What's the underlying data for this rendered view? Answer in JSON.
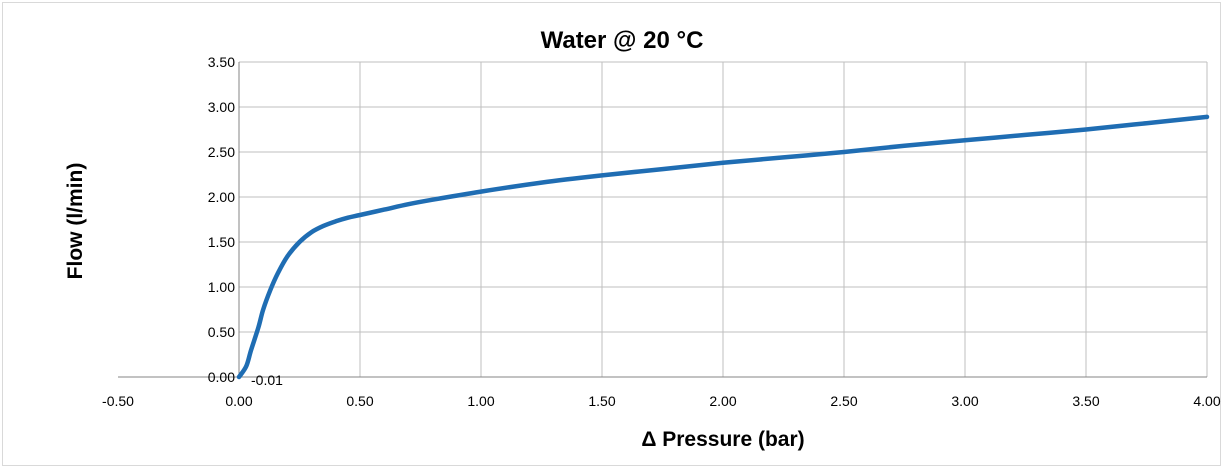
{
  "chart_data": {
    "type": "line",
    "title": "Water @ 20 °C",
    "xlabel": "Δ Pressure (bar)",
    "ylabel": "Flow (l/min)",
    "xlim": [
      -0.5,
      4.0
    ],
    "ylim": [
      0.0,
      3.5
    ],
    "xticks": [
      "-0.50",
      "0.00",
      "0.50",
      "1.00",
      "1.50",
      "2.00",
      "2.50",
      "3.00",
      "3.50",
      "4.00"
    ],
    "yticks": [
      "0.00",
      "0.50",
      "1.00",
      "1.50",
      "2.00",
      "2.50",
      "3.00",
      "3.50"
    ],
    "grid": true,
    "legend": "none",
    "series": [
      {
        "color": "#1f6db3",
        "x": [
          0.0,
          0.03,
          0.05,
          0.08,
          0.1,
          0.13,
          0.16,
          0.2,
          0.25,
          0.3,
          0.35,
          0.4,
          0.45,
          0.5,
          0.6,
          0.7,
          0.8,
          1.0,
          1.25,
          1.5,
          1.75,
          2.0,
          2.25,
          2.5,
          2.75,
          3.0,
          3.25,
          3.5,
          3.75,
          4.0
        ],
        "y": [
          0.0,
          0.12,
          0.3,
          0.55,
          0.75,
          0.97,
          1.15,
          1.34,
          1.5,
          1.61,
          1.68,
          1.73,
          1.77,
          1.8,
          1.86,
          1.92,
          1.97,
          2.06,
          2.16,
          2.24,
          2.31,
          2.38,
          2.44,
          2.5,
          2.57,
          2.63,
          2.69,
          2.75,
          2.82,
          2.89
        ]
      }
    ],
    "annotations": [
      {
        "text": "-0.01",
        "x": 0.0,
        "y": 0.0
      }
    ]
  }
}
